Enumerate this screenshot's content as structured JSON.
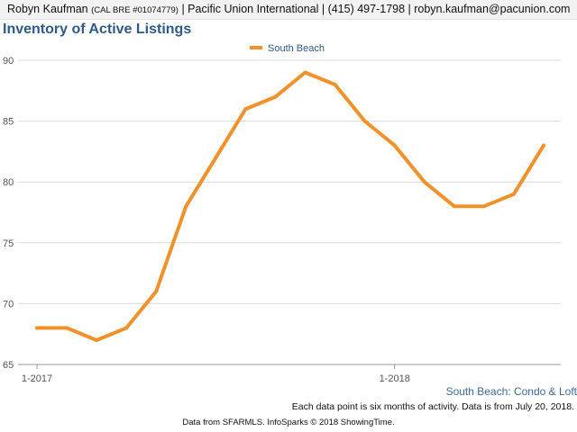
{
  "header": {
    "name": "Robyn Kaufman",
    "license": "(CAL BRE #01074779)",
    "rest": "| Pacific Union International | (415) 497-1798 | robyn.kaufman@pacunion.com"
  },
  "chart_data": {
    "type": "line",
    "title": "Inventory of Active Listings",
    "xlabel": "",
    "ylabel": "",
    "x_tick_labels": [
      "1-2017",
      "1-2018"
    ],
    "y_ticks": [
      65,
      70,
      75,
      80,
      85,
      90
    ],
    "ylim": [
      65,
      90
    ],
    "grid": true,
    "legend_position": "top-center",
    "series": [
      {
        "name": "South Beach",
        "color": "#f0922b",
        "values": [
          68,
          68,
          67,
          68,
          71,
          78,
          82,
          86,
          87,
          89,
          88,
          85,
          83,
          80,
          78,
          78,
          79,
          83
        ]
      }
    ]
  },
  "series_caption": "South Beach: Condo & Loft",
  "note": "Each data point is six months of activity. Data is from July 20, 2018.",
  "footer": "Data from SFARMLS. InfoSparks © 2018 ShowingTime."
}
